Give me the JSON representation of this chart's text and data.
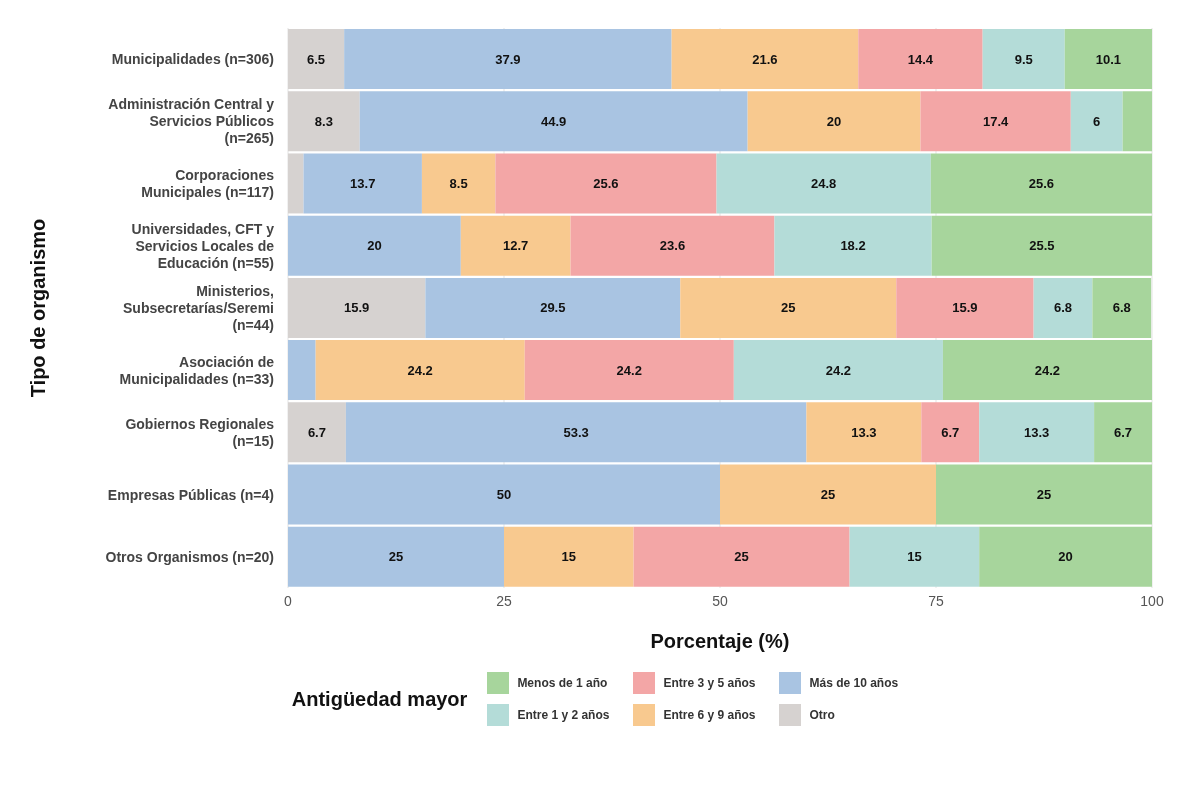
{
  "chart_data": {
    "type": "bar",
    "orientation": "horizontal",
    "stacked": true,
    "xlabel": "Porcentaje (%)",
    "ylabel": "Tipo de organismo",
    "legend_title": "Antigüedad mayor",
    "legend": "bottom",
    "grid": "x",
    "categories": [
      "Municipalidades (n=306)",
      "Administración Central y Servicios Públicos (n=265)",
      "Corporaciones Municipales (n=117)",
      "Universidades, CFT y Servicios Locales de Educación (n=55)",
      "Ministerios, Subsecretarías/Seremi (n=44)",
      "Asociación de Municipalidades (n=33)",
      "Gobiernos Regionales (n=15)",
      "Empresas Públicas (n=4)",
      "Otros Organismos (n=20)"
    ],
    "xlim": [
      0,
      100
    ],
    "xticks": [
      0,
      25,
      50,
      75,
      100
    ],
    "series": [
      {
        "name": "Otro",
        "color": "#d6d2d0",
        "values": [
          6.5,
          8.3,
          1.8,
          null,
          15.9,
          null,
          6.7,
          null,
          null
        ],
        "value_labels": [
          "6.5",
          "8.3",
          null,
          null,
          "15.9",
          null,
          "6.7",
          null,
          null
        ]
      },
      {
        "name": "Más de 10 años",
        "color": "#a9c4e2",
        "values": [
          37.9,
          44.9,
          13.7,
          20,
          29.5,
          3.2,
          53.3,
          50,
          25
        ],
        "value_labels": [
          "37.9",
          "44.9",
          "13.7",
          "20",
          "29.5",
          null,
          "53.3",
          "50",
          "25"
        ]
      },
      {
        "name": "Entre 6 y 9 años",
        "color": "#f8c98f",
        "values": [
          21.6,
          20,
          8.5,
          12.7,
          25,
          24.2,
          13.3,
          25,
          15
        ],
        "value_labels": [
          "21.6",
          "20",
          "8.5",
          "12.7",
          "25",
          "24.2",
          "13.3",
          "25",
          "15"
        ]
      },
      {
        "name": "Entre 3 y 5 años",
        "color": "#f3a6a6",
        "values": [
          14.4,
          17.4,
          25.6,
          23.6,
          15.9,
          24.2,
          6.7,
          null,
          25
        ],
        "value_labels": [
          "14.4",
          "17.4",
          "25.6",
          "23.6",
          "15.9",
          "24.2",
          "6.7",
          null,
          "25"
        ]
      },
      {
        "name": "Entre 1 y 2 años",
        "color": "#b4dcd8",
        "values": [
          9.5,
          6,
          24.8,
          18.2,
          6.8,
          24.2,
          13.3,
          null,
          15
        ],
        "value_labels": [
          "9.5",
          "6",
          "24.8",
          "18.2",
          "6.8",
          "24.2",
          "13.3",
          null,
          "15"
        ]
      },
      {
        "name": "Menos de 1 año",
        "color": "#a7d59c",
        "values": [
          10.1,
          3.4,
          25.6,
          25.5,
          6.8,
          24.2,
          6.7,
          25,
          20
        ],
        "value_labels": [
          "10.1",
          null,
          "25.6",
          "25.5",
          "6.8",
          "24.2",
          "6.7",
          "25",
          "20"
        ]
      }
    ]
  }
}
